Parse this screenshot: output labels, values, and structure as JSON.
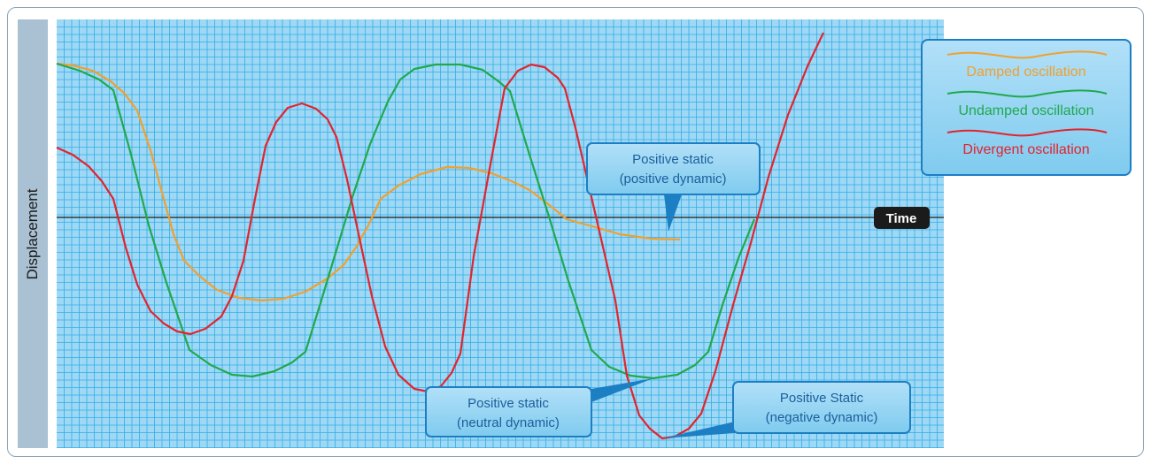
{
  "y_axis_label": "Displacement",
  "x_axis_label": "Time",
  "legend": {
    "items": [
      {
        "label": "Damped oscillation",
        "color": "#f0a030"
      },
      {
        "label": "Undamped oscillation",
        "color": "#1fa94d"
      },
      {
        "label": "Divergent oscillation",
        "color": "#e2242e"
      }
    ]
  },
  "callouts": [
    {
      "lines": [
        "Positive static",
        "(positive dynamic)"
      ]
    },
    {
      "lines": [
        "Positive static",
        "(neutral dynamic)"
      ]
    },
    {
      "lines": [
        "Positive Static",
        "(negative dynamic)"
      ]
    }
  ],
  "colors": {
    "grid_background": "#9fd8f5",
    "grid_line": "#31aee6",
    "callout_fill": "#8dd1f3",
    "callout_border": "#1c7fc4",
    "callout_text": "#1b5f9c",
    "time_tag": "#1b1b1b"
  }
}
